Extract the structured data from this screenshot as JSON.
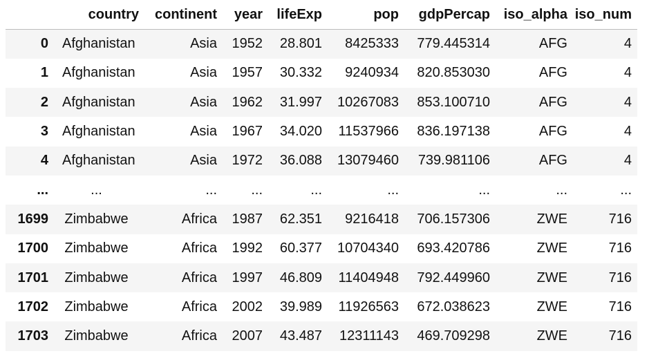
{
  "table": {
    "columns": [
      "country",
      "continent",
      "year",
      "lifeExp",
      "pop",
      "gdpPercap",
      "iso_alpha",
      "iso_num"
    ],
    "rows": [
      {
        "index": "0",
        "cells": [
          "Afghanistan",
          "Asia",
          "1952",
          "28.801",
          "8425333",
          "779.445314",
          "AFG",
          "4"
        ]
      },
      {
        "index": "1",
        "cells": [
          "Afghanistan",
          "Asia",
          "1957",
          "30.332",
          "9240934",
          "820.853030",
          "AFG",
          "4"
        ]
      },
      {
        "index": "2",
        "cells": [
          "Afghanistan",
          "Asia",
          "1962",
          "31.997",
          "10267083",
          "853.100710",
          "AFG",
          "4"
        ]
      },
      {
        "index": "3",
        "cells": [
          "Afghanistan",
          "Asia",
          "1967",
          "34.020",
          "11537966",
          "836.197138",
          "AFG",
          "4"
        ]
      },
      {
        "index": "4",
        "cells": [
          "Afghanistan",
          "Asia",
          "1972",
          "36.088",
          "13079460",
          "739.981106",
          "AFG",
          "4"
        ]
      },
      {
        "index": "...",
        "cells": [
          "...",
          "...",
          "...",
          "...",
          "...",
          "...",
          "...",
          "..."
        ]
      },
      {
        "index": "1699",
        "cells": [
          "Zimbabwe",
          "Africa",
          "1987",
          "62.351",
          "9216418",
          "706.157306",
          "ZWE",
          "716"
        ]
      },
      {
        "index": "1700",
        "cells": [
          "Zimbabwe",
          "Africa",
          "1992",
          "60.377",
          "10704340",
          "693.420786",
          "ZWE",
          "716"
        ]
      },
      {
        "index": "1701",
        "cells": [
          "Zimbabwe",
          "Africa",
          "1997",
          "46.809",
          "11404948",
          "792.449960",
          "ZWE",
          "716"
        ]
      },
      {
        "index": "1702",
        "cells": [
          "Zimbabwe",
          "Africa",
          "2002",
          "39.989",
          "11926563",
          "672.038623",
          "ZWE",
          "716"
        ]
      },
      {
        "index": "1703",
        "cells": [
          "Zimbabwe",
          "Africa",
          "2007",
          "43.487",
          "12311143",
          "469.709298",
          "ZWE",
          "716"
        ]
      }
    ]
  }
}
